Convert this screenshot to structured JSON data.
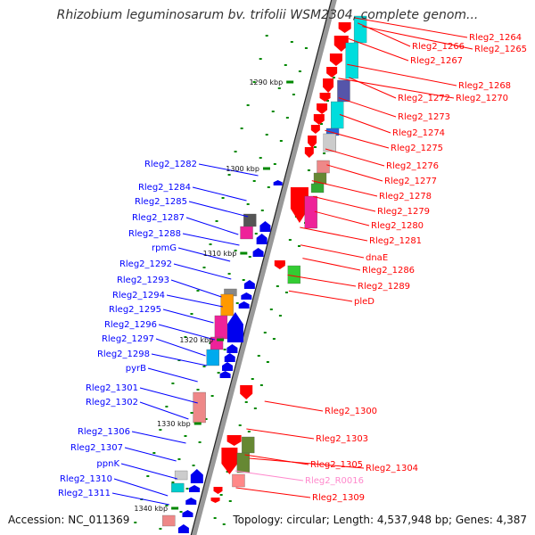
{
  "title": "Rhizobium leguminosarum bv. trifolii WSM2304, complete genom...",
  "accession": "Accession: NC_011369",
  "topology": "Topology: circular; Length: 4,537,948 bp; Genes: 4,387",
  "colors": {
    "backbone": "#999999",
    "plus_strand_label": "#ff0000",
    "minus_strand_label": "#0000ff",
    "rna_label": "#ff88cc",
    "tick": "#008800"
  },
  "kbp_ticks": [
    "1290 kbp",
    "1300 kbp",
    "1310 kbp",
    "1320 kbp",
    "1330 kbp",
    "1340 kbp"
  ],
  "right_genes": [
    {
      "label": "Rleg2_1264",
      "color": "red"
    },
    {
      "label": "Rleg2_1266",
      "color": "red"
    },
    {
      "label": "Rleg2_1265",
      "color": "red"
    },
    {
      "label": "Rleg2_1267",
      "color": "red"
    },
    {
      "label": "Rleg2_1268",
      "color": "red"
    },
    {
      "label": "Rleg2_1272",
      "color": "red"
    },
    {
      "label": "Rleg2_1270",
      "color": "red"
    },
    {
      "label": "Rleg2_1273",
      "color": "red"
    },
    {
      "label": "Rleg2_1274",
      "color": "red"
    },
    {
      "label": "Rleg2_1275",
      "color": "red"
    },
    {
      "label": "Rleg2_1276",
      "color": "red"
    },
    {
      "label": "Rleg2_1277",
      "color": "red"
    },
    {
      "label": "Rleg2_1278",
      "color": "red"
    },
    {
      "label": "Rleg2_1279",
      "color": "red"
    },
    {
      "label": "Rleg2_1280",
      "color": "red"
    },
    {
      "label": "Rleg2_1281",
      "color": "red"
    },
    {
      "label": "dnaE",
      "color": "red"
    },
    {
      "label": "Rleg2_1286",
      "color": "red"
    },
    {
      "label": "Rleg2_1289",
      "color": "red"
    },
    {
      "label": "pleD",
      "color": "red"
    },
    {
      "label": "Rleg2_1300",
      "color": "red"
    },
    {
      "label": "Rleg2_1303",
      "color": "red"
    },
    {
      "label": "Rleg2_1305",
      "color": "red"
    },
    {
      "label": "Rleg2_1304",
      "color": "red"
    },
    {
      "label": "Rleg2_R0016",
      "color": "pink"
    },
    {
      "label": "Rleg2_1309",
      "color": "red"
    }
  ],
  "left_genes": [
    {
      "label": "Rleg2_1282"
    },
    {
      "label": "Rleg2_1284"
    },
    {
      "label": "Rleg2_1285"
    },
    {
      "label": "Rleg2_1287"
    },
    {
      "label": "Rleg2_1288"
    },
    {
      "label": "rpmG"
    },
    {
      "label": "Rleg2_1292"
    },
    {
      "label": "Rleg2_1293"
    },
    {
      "label": "Rleg2_1294"
    },
    {
      "label": "Rleg2_1295"
    },
    {
      "label": "Rleg2_1296"
    },
    {
      "label": "Rleg2_1297"
    },
    {
      "label": "Rleg2_1298"
    },
    {
      "label": "pyrB"
    },
    {
      "label": "Rleg2_1301"
    },
    {
      "label": "Rleg2_1302"
    },
    {
      "label": "Rleg2_1306"
    },
    {
      "label": "Rleg2_1307"
    },
    {
      "label": "ppnK"
    },
    {
      "label": "Rleg2_1310"
    },
    {
      "label": "Rleg2_1311"
    }
  ]
}
